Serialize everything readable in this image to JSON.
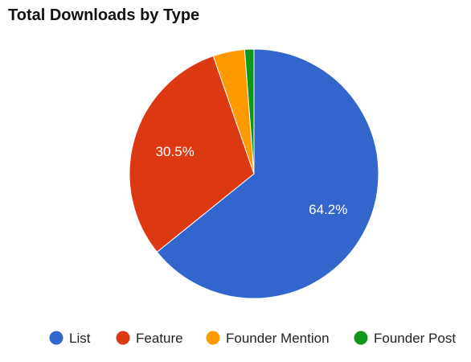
{
  "chart_data": {
    "type": "pie",
    "title": "Total Downloads by Type",
    "slices": [
      {
        "name": "List",
        "value": 64.2,
        "color": "#3366cc",
        "label": "64.2%"
      },
      {
        "name": "Feature",
        "value": 30.5,
        "color": "#dc3912",
        "label": "30.5%"
      },
      {
        "name": "Founder Mention",
        "value": 4.1,
        "color": "#ff9900",
        "label": ""
      },
      {
        "name": "Founder Post",
        "value": 1.2,
        "color": "#109618",
        "label": ""
      }
    ],
    "legend_position": "bottom"
  }
}
